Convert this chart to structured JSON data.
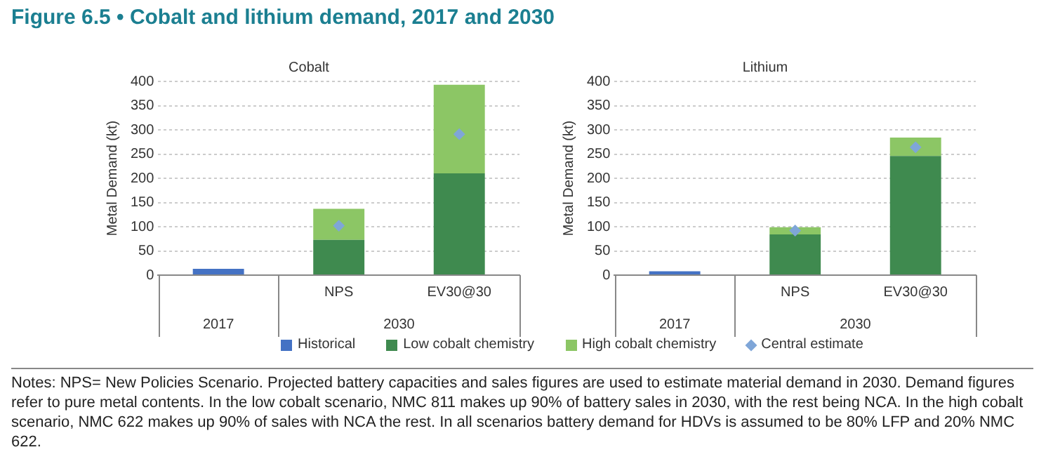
{
  "chart_data": [
    {
      "type": "other",
      "title": "Figure 6.5 • Cobalt and lithium demand, 2017 and 2030",
      "annotations": [
        "Notes: NPS= New Policies Scenario. Projected battery capacities and sales figures are used to estimate material demand in 2030. Demand figures refer to pure metal contents. In the low cobalt scenario, NMC 811 makes up 90% of battery sales in 2030, with the rest being NCA. In the high cobalt scenario, NMC 622 makes up 90% of sales with NCA the rest. In all scenarios battery demand for HDVs is assumed to be 80% LFP and 20% NMC 622."
      ]
    },
    {
      "type": "bar",
      "title": "Cobalt",
      "ylabel": "Metal Demand (kt)",
      "categories": [
        null,
        "NPS",
        "EV30@30"
      ],
      "annotations": [
        "2017",
        "2030"
      ],
      "stacked": true,
      "ylim": [
        0,
        400
      ],
      "yticks": [
        0,
        50,
        100,
        150,
        200,
        250,
        300,
        350,
        400
      ],
      "grid": "y",
      "legend": "bottom",
      "marker": "diamond",
      "series": [
        {
          "name": "Historical",
          "color": "#4472c4",
          "values": [
            13,
            null,
            null
          ]
        },
        {
          "name": "Low cobalt chemistry",
          "color": "#3f8a4f",
          "values": [
            null,
            73,
            210
          ]
        },
        {
          "name": "High cobalt chemistry",
          "color": "#8cc665",
          "values": [
            null,
            64,
            183
          ]
        },
        {
          "name": "Central estimate",
          "type": "scatter",
          "color": "#7fa6d8",
          "values": [
            null,
            102,
            291
          ]
        }
      ]
    },
    {
      "type": "bar",
      "title": "Lithium",
      "ylabel": "Metal Demand (kt)",
      "categories": [
        null,
        "NPS",
        "EV30@30"
      ],
      "annotations": [
        "2017",
        "2030"
      ],
      "stacked": true,
      "ylim": [
        0,
        400
      ],
      "yticks": [
        0,
        50,
        100,
        150,
        200,
        250,
        300,
        350,
        400
      ],
      "grid": "y",
      "legend": "bottom",
      "marker": "diamond",
      "series": [
        {
          "name": "Historical",
          "color": "#4472c4",
          "values": [
            8,
            null,
            null
          ]
        },
        {
          "name": "Low cobalt chemistry",
          "color": "#3f8a4f",
          "values": [
            null,
            84,
            246
          ]
        },
        {
          "name": "High cobalt chemistry",
          "color": "#8cc665",
          "values": [
            null,
            15,
            38
          ]
        },
        {
          "name": "Central estimate",
          "type": "scatter",
          "color": "#7fa6d8",
          "values": [
            null,
            92,
            264
          ]
        }
      ]
    }
  ]
}
